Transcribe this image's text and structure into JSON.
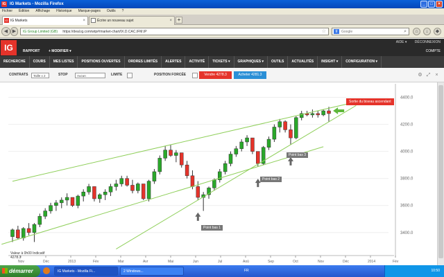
{
  "window": {
    "title": "IG Markets - Mozilla Firefox",
    "menus": [
      "Fichier",
      "Édition",
      "Affichage",
      "Historique",
      "Marque-pages",
      "Outils",
      "?"
    ]
  },
  "tabs": [
    {
      "label": "IG Markets",
      "active": true
    },
    {
      "label": "Écrire un nouveau sujet",
      "active": false
    }
  ],
  "urlbar": {
    "site": "IG Group Limited (GB)",
    "url": "https://deal.ig.com/wtp#/market-chart/IX.D.CAC.IFM.IP"
  },
  "search": {
    "placeholder": "Google"
  },
  "ig_header": {
    "logo": "IG",
    "aide": "AIDE ▾",
    "deconnexion": "DÉCONNEXION",
    "rapport": "RAPPORT",
    "modifier": "+  MODIFIER ▾",
    "compte": "COMPTE"
  },
  "nav_items": [
    "RECHERCHE",
    "COURS",
    "MES LISTES",
    "POSITIONS OUVERTES",
    "ORDRES LIMITÉS",
    "ALERTES",
    "ACTIVITÉ",
    "TICKETS ▾",
    "GRAPHIQUES ▾",
    "OUTILS",
    "ACTUALITÉS",
    "INSIGHT ▾",
    "CONFIGURATION ▾"
  ],
  "deal": {
    "contrats_label": "CONTRATS",
    "contrats_value": "Taille x 2",
    "stop_label": "STOP",
    "stop_value": "Aucun",
    "limite_label": "LIMITE",
    "position_forcee_label": "POSITION FORCÉE",
    "sell_label": "Vendre 4278.3",
    "buy_label": "Acheter 4281.3"
  },
  "chart_data": {
    "type": "candlestick",
    "y_ticks": [
      3400,
      3600,
      3800,
      4000,
      4200,
      4400
    ],
    "y_tick_labels": [
      "3400.0",
      "3600.0",
      "3800.0",
      "4000.0",
      "4200.0",
      "4400.0"
    ],
    "ylim": [
      3230,
      4500
    ],
    "x_ticks": [
      "Nov",
      "Déc",
      "2013",
      "Fév",
      "Mar",
      "Avr",
      "Mai",
      "Jun",
      "Jul",
      "Aoû",
      "Sep",
      "Oct",
      "Nov",
      "Déc",
      "2014",
      "Fév"
    ],
    "up_color": "#2aa82a",
    "down_color": "#e5332a",
    "trendline_color": "#8fcf5a",
    "candles": [
      {
        "o": 3370,
        "h": 3430,
        "l": 3330,
        "c": 3420
      },
      {
        "o": 3420,
        "h": 3450,
        "l": 3350,
        "c": 3360
      },
      {
        "o": 3360,
        "h": 3440,
        "l": 3340,
        "c": 3430
      },
      {
        "o": 3430,
        "h": 3470,
        "l": 3380,
        "c": 3400
      },
      {
        "o": 3400,
        "h": 3470,
        "l": 3330,
        "c": 3460
      },
      {
        "o": 3460,
        "h": 3540,
        "l": 3440,
        "c": 3520
      },
      {
        "o": 3520,
        "h": 3580,
        "l": 3500,
        "c": 3560
      },
      {
        "o": 3560,
        "h": 3620,
        "l": 3540,
        "c": 3600
      },
      {
        "o": 3600,
        "h": 3640,
        "l": 3560,
        "c": 3620
      },
      {
        "o": 3620,
        "h": 3660,
        "l": 3580,
        "c": 3640
      },
      {
        "o": 3640,
        "h": 3690,
        "l": 3600,
        "c": 3660
      },
      {
        "o": 3660,
        "h": 3660,
        "l": 3590,
        "c": 3600
      },
      {
        "o": 3600,
        "h": 3680,
        "l": 3580,
        "c": 3670
      },
      {
        "o": 3670,
        "h": 3720,
        "l": 3630,
        "c": 3700
      },
      {
        "o": 3700,
        "h": 3760,
        "l": 3680,
        "c": 3740
      },
      {
        "o": 3740,
        "h": 3740,
        "l": 3630,
        "c": 3650
      },
      {
        "o": 3650,
        "h": 3690,
        "l": 3620,
        "c": 3680
      },
      {
        "o": 3680,
        "h": 3720,
        "l": 3640,
        "c": 3700
      },
      {
        "o": 3700,
        "h": 3760,
        "l": 3670,
        "c": 3740
      },
      {
        "o": 3740,
        "h": 3790,
        "l": 3710,
        "c": 3760
      },
      {
        "o": 3760,
        "h": 3820,
        "l": 3740,
        "c": 3800
      },
      {
        "o": 3800,
        "h": 3820,
        "l": 3740,
        "c": 3750
      },
      {
        "o": 3750,
        "h": 3790,
        "l": 3690,
        "c": 3710
      },
      {
        "o": 3710,
        "h": 3770,
        "l": 3690,
        "c": 3760
      },
      {
        "o": 3760,
        "h": 3760,
        "l": 3640,
        "c": 3650
      },
      {
        "o": 3650,
        "h": 3790,
        "l": 3630,
        "c": 3780
      },
      {
        "o": 3780,
        "h": 3870,
        "l": 3760,
        "c": 3850
      },
      {
        "o": 3850,
        "h": 3970,
        "l": 3830,
        "c": 3950
      },
      {
        "o": 3950,
        "h": 4040,
        "l": 3930,
        "c": 4010
      },
      {
        "o": 4010,
        "h": 4050,
        "l": 3960,
        "c": 3970
      },
      {
        "o": 3970,
        "h": 4010,
        "l": 3920,
        "c": 3990
      },
      {
        "o": 3990,
        "h": 3990,
        "l": 3880,
        "c": 3900
      },
      {
        "o": 3900,
        "h": 3930,
        "l": 3800,
        "c": 3820
      },
      {
        "o": 3820,
        "h": 3860,
        "l": 3720,
        "c": 3740
      },
      {
        "o": 3740,
        "h": 3780,
        "l": 3640,
        "c": 3660
      },
      {
        "o": 3660,
        "h": 3700,
        "l": 3560,
        "c": 3680
      },
      {
        "o": 3680,
        "h": 3740,
        "l": 3650,
        "c": 3730
      },
      {
        "o": 3730,
        "h": 3800,
        "l": 3710,
        "c": 3790
      },
      {
        "o": 3790,
        "h": 3870,
        "l": 3770,
        "c": 3850
      },
      {
        "o": 3850,
        "h": 3930,
        "l": 3830,
        "c": 3910
      },
      {
        "o": 3910,
        "h": 4000,
        "l": 3890,
        "c": 3980
      },
      {
        "o": 3980,
        "h": 4040,
        "l": 3960,
        "c": 4020
      },
      {
        "o": 4020,
        "h": 4090,
        "l": 4000,
        "c": 4070
      },
      {
        "o": 4070,
        "h": 4120,
        "l": 4040,
        "c": 4100
      },
      {
        "o": 4100,
        "h": 4100,
        "l": 3980,
        "c": 4000
      },
      {
        "o": 4000,
        "h": 4000,
        "l": 3890,
        "c": 3910
      },
      {
        "o": 3910,
        "h": 4040,
        "l": 3900,
        "c": 4030
      },
      {
        "o": 4030,
        "h": 4110,
        "l": 4010,
        "c": 4090
      },
      {
        "o": 4090,
        "h": 4200,
        "l": 4070,
        "c": 4180
      },
      {
        "o": 4180,
        "h": 4240,
        "l": 4140,
        "c": 4220
      },
      {
        "o": 4220,
        "h": 4230,
        "l": 4140,
        "c": 4160
      },
      {
        "o": 4160,
        "h": 4200,
        "l": 4050,
        "c": 4100
      },
      {
        "o": 4100,
        "h": 4260,
        "l": 4090,
        "c": 4250
      },
      {
        "o": 4250,
        "h": 4300,
        "l": 4230,
        "c": 4280
      },
      {
        "o": 4280,
        "h": 4300,
        "l": 4260,
        "c": 4270
      },
      {
        "o": 4270,
        "h": 4310,
        "l": 4250,
        "c": 4280
      },
      {
        "o": 4280,
        "h": 4300,
        "l": 4250,
        "c": 4270
      },
      {
        "o": 4270,
        "h": 4310,
        "l": 4260,
        "c": 4300
      },
      {
        "o": 4300,
        "h": 4330,
        "l": 4220,
        "c": 4280
      }
    ],
    "annotations": [
      {
        "label": "Point bas 1"
      },
      {
        "label": "Point bas 2"
      },
      {
        "label": "Point bas 3"
      },
      {
        "label": "Sortie du biseau ascendant"
      }
    ],
    "note_line1": "Valeur à 0h00 Indicatif",
    "note_line2": "4278.3"
  },
  "taskbar": {
    "start": "démarrer",
    "items": [
      "IG Markets - Mozilla Fi...",
      "2 Windows..."
    ],
    "lang": "FR",
    "clock": "10:50"
  }
}
